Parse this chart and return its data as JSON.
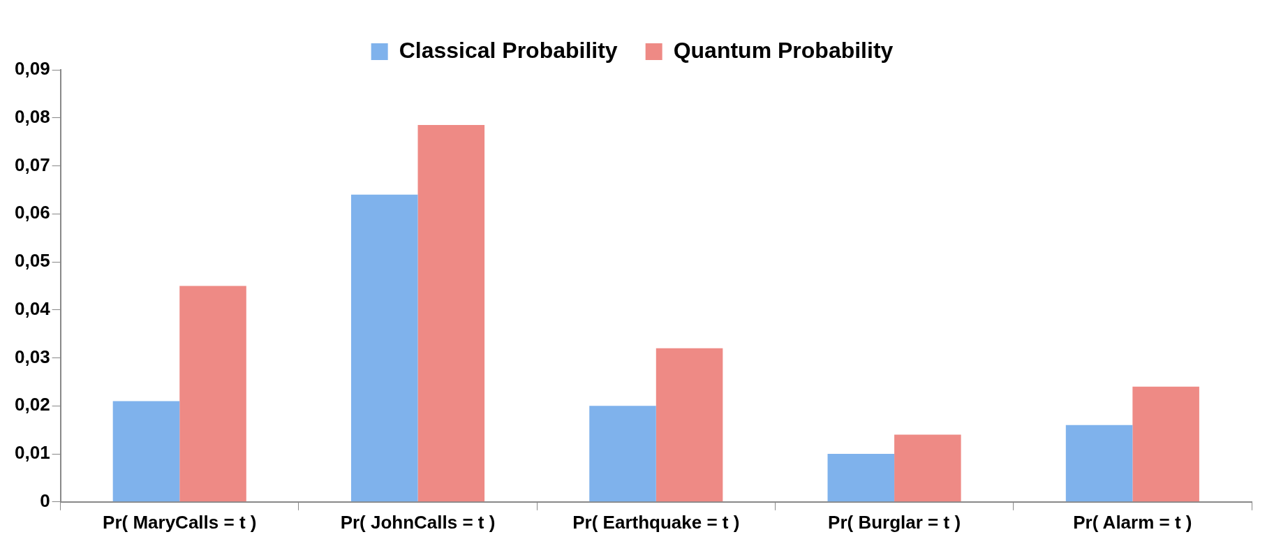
{
  "chart_data": {
    "type": "bar",
    "categories": [
      "Pr( MaryCalls = t )",
      "Pr( JohnCalls = t )",
      "Pr( Earthquake = t )",
      "Pr( Burglar = t )",
      "Pr( Alarm = t )"
    ],
    "series": [
      {
        "name": "Classical Probability",
        "color": "#7fb2ec",
        "values": [
          0.021,
          0.064,
          0.02,
          0.01,
          0.016
        ]
      },
      {
        "name": "Quantum Probability",
        "color": "#ee8a85",
        "values": [
          0.045,
          0.0785,
          0.032,
          0.014,
          0.024
        ]
      }
    ],
    "ylim": [
      0,
      0.09
    ],
    "yticks": [
      {
        "value": 0,
        "label": "0"
      },
      {
        "value": 0.01,
        "label": "0,01"
      },
      {
        "value": 0.02,
        "label": "0,02"
      },
      {
        "value": 0.03,
        "label": "0,03"
      },
      {
        "value": 0.04,
        "label": "0,04"
      },
      {
        "value": 0.05,
        "label": "0,05"
      },
      {
        "value": 0.06,
        "label": "0,06"
      },
      {
        "value": 0.07,
        "label": "0,07"
      },
      {
        "value": 0.08,
        "label": "0,08"
      },
      {
        "value": 0.09,
        "label": "0,09"
      }
    ],
    "grid": false,
    "legend": "top"
  }
}
